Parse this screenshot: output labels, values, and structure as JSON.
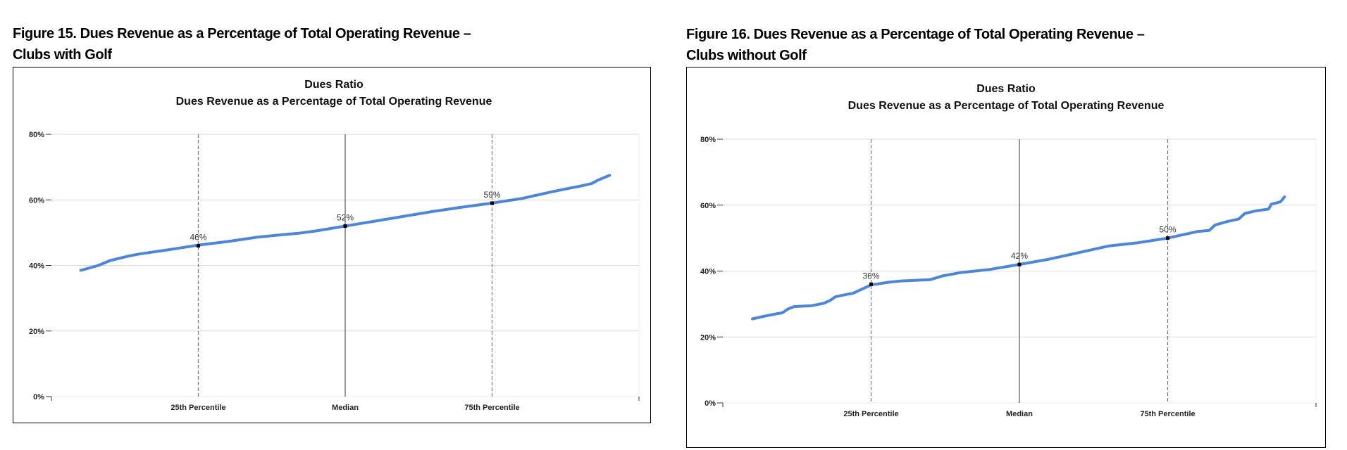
{
  "figures": [
    {
      "heading_line1": "Figure 15. Dues Revenue as a Percentage of Total Operating Revenue –",
      "heading_line2": "Clubs with Golf"
    },
    {
      "heading_line1": "Figure 16. Dues Revenue as a Percentage of Total Operating Revenue –",
      "heading_line2": "Clubs without Golf"
    }
  ],
  "colors": {
    "line": "#4a86e0",
    "grid": "#d9d9d9",
    "median": "#777777",
    "dashed": "#777777"
  },
  "chart_data": [
    {
      "type": "line",
      "title": "Dues Ratio",
      "subtitle": "Dues Revenue as a Percentage of Total Operating Revenue",
      "xlabel": "",
      "ylabel": "",
      "xlim": [
        0,
        100
      ],
      "ylim": [
        0,
        80
      ],
      "yticks": [
        0,
        20,
        40,
        60,
        80
      ],
      "ytick_labels": [
        "0%",
        "20%",
        "40%",
        "60%",
        "80%"
      ],
      "grid": true,
      "markers": [
        {
          "label": "25th Percentile",
          "x": 25,
          "y": 46,
          "value_label": "46%",
          "style": "dashed"
        },
        {
          "label": "Median",
          "x": 50,
          "y": 52,
          "value_label": "52%",
          "style": "solid"
        },
        {
          "label": "75th Percentile",
          "x": 75,
          "y": 59,
          "value_label": "59%",
          "style": "dashed"
        }
      ],
      "series": [
        {
          "name": "Dues Ratio",
          "x": [
            5,
            8,
            10,
            13,
            15,
            20,
            25,
            30,
            35,
            40,
            42,
            45,
            50,
            55,
            60,
            65,
            70,
            75,
            80,
            85,
            88,
            90,
            92,
            93,
            95
          ],
          "y": [
            38.5,
            40,
            41.5,
            42.8,
            43.5,
            44.8,
            46.2,
            47.3,
            48.6,
            49.5,
            49.8,
            50.5,
            52,
            53.5,
            55,
            56.5,
            57.8,
            59,
            60.4,
            62.4,
            63.5,
            64.2,
            65,
            66,
            67.5
          ]
        }
      ]
    },
    {
      "type": "line",
      "title": "Dues Ratio",
      "subtitle": "Dues Revenue as a Percentage of Total Operating Revenue",
      "xlabel": "",
      "ylabel": "",
      "xlim": [
        0,
        100
      ],
      "ylim": [
        0,
        80
      ],
      "yticks": [
        0,
        20,
        40,
        60,
        80
      ],
      "ytick_labels": [
        "0%",
        "20%",
        "40%",
        "60%",
        "80%"
      ],
      "grid": true,
      "markers": [
        {
          "label": "25th Percentile",
          "x": 25,
          "y": 36,
          "value_label": "36%",
          "style": "dashed"
        },
        {
          "label": "Median",
          "x": 50,
          "y": 42,
          "value_label": "42%",
          "style": "solid"
        },
        {
          "label": "75th Percentile",
          "x": 75,
          "y": 50,
          "value_label": "50%",
          "style": "dashed"
        }
      ],
      "series": [
        {
          "name": "Dues Ratio",
          "x": [
            5,
            7,
            9,
            10,
            11,
            12,
            15,
            17,
            18,
            19,
            20,
            22,
            25,
            28,
            30,
            35,
            37,
            40,
            45,
            50,
            55,
            60,
            65,
            70,
            75,
            80,
            82,
            83,
            85,
            87,
            88,
            90,
            92,
            92.5,
            94,
            94.7
          ],
          "y": [
            25.5,
            26.3,
            27,
            27.3,
            28.5,
            29.2,
            29.5,
            30.2,
            31,
            32.2,
            32.6,
            33.3,
            35.8,
            36.6,
            37,
            37.4,
            38.5,
            39.5,
            40.5,
            42,
            43.6,
            45.6,
            47.6,
            48.6,
            50,
            52,
            52.3,
            54,
            55,
            55.8,
            57.5,
            58.3,
            58.8,
            60.3,
            61,
            62.5
          ]
        }
      ]
    }
  ]
}
